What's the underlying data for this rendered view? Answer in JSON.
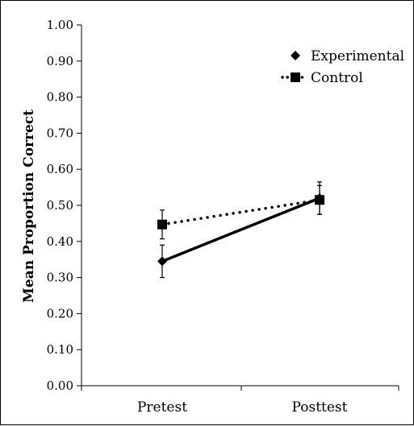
{
  "chart_data": {
    "type": "line",
    "title": "",
    "xlabel": "",
    "ylabel": "Mean Proportion Correct",
    "categories": [
      "Pretest",
      "Posttest"
    ],
    "ylim": [
      0,
      1.0
    ],
    "yticks": [
      "0.00",
      "0.10",
      "0.20",
      "0.30",
      "0.40",
      "0.50",
      "0.60",
      "0.70",
      "0.80",
      "0.90",
      "1.00"
    ],
    "grid": false,
    "legend_position": "top-right",
    "series": [
      {
        "name": "Experimental",
        "marker": "diamond",
        "line_style": "solid",
        "color": "#000000",
        "values": [
          0.345,
          0.52
        ],
        "error": [
          0.045,
          0.045
        ]
      },
      {
        "name": "Control",
        "marker": "square",
        "line_style": "dotted",
        "color": "#000000",
        "values": [
          0.447,
          0.515
        ],
        "error": [
          0.04,
          0.04
        ]
      }
    ]
  }
}
